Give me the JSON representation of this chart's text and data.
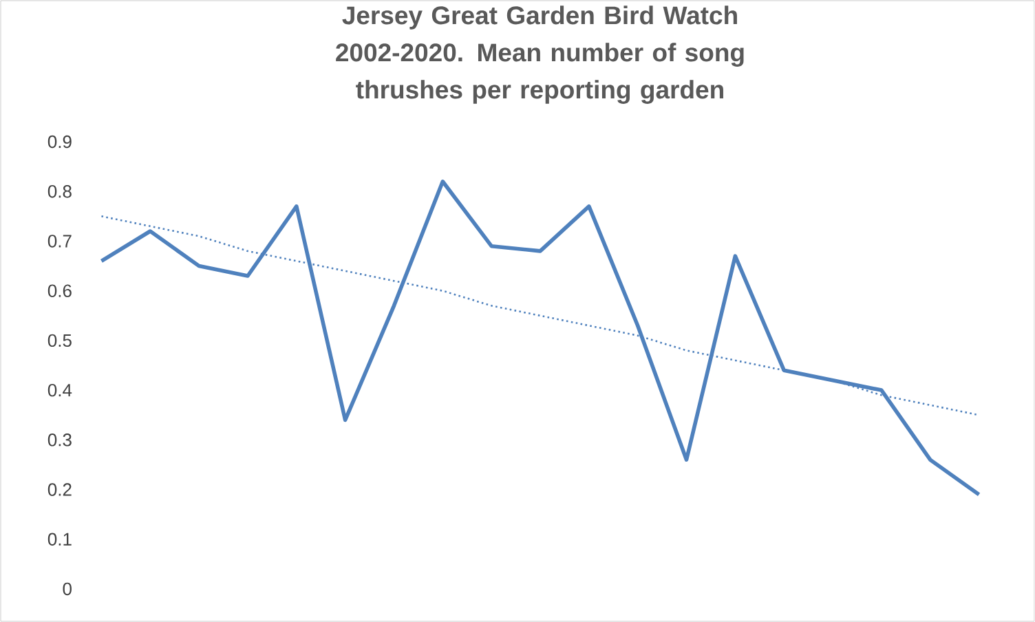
{
  "chart_data": {
    "type": "line",
    "title": "Jersey Great Garden Bird Watch 2002-2020. Mean number of song thrushes per reporting garden",
    "categories": [
      null,
      null,
      null,
      null,
      null,
      null,
      null,
      null,
      null,
      null,
      null,
      null,
      null,
      null,
      null,
      null,
      null,
      null,
      null
    ],
    "series": [
      {
        "color": "#4f81bd",
        "line_style": "solid",
        "values": [
          0.66,
          0.72,
          0.65,
          0.63,
          0.77,
          0.34,
          0.57,
          0.82,
          0.69,
          0.68,
          0.77,
          0.53,
          0.26,
          0.67,
          0.44,
          0.42,
          0.4,
          0.26,
          0.19
        ]
      },
      {
        "color": "#4f81bd",
        "line_style": "dotted",
        "values": [
          0.75,
          0.73,
          0.71,
          0.68,
          0.66,
          0.64,
          0.62,
          0.6,
          0.57,
          0.55,
          0.53,
          0.51,
          0.48,
          0.46,
          0.44,
          0.42,
          0.39,
          0.37,
          0.35
        ]
      }
    ],
    "ylim": [
      0,
      0.9
    ],
    "yticks": [
      0,
      0.1,
      0.2,
      0.3,
      0.4,
      0.5,
      0.6,
      0.7,
      0.8,
      0.9
    ],
    "tick_labels": "y",
    "grid": false,
    "marker": "none"
  }
}
